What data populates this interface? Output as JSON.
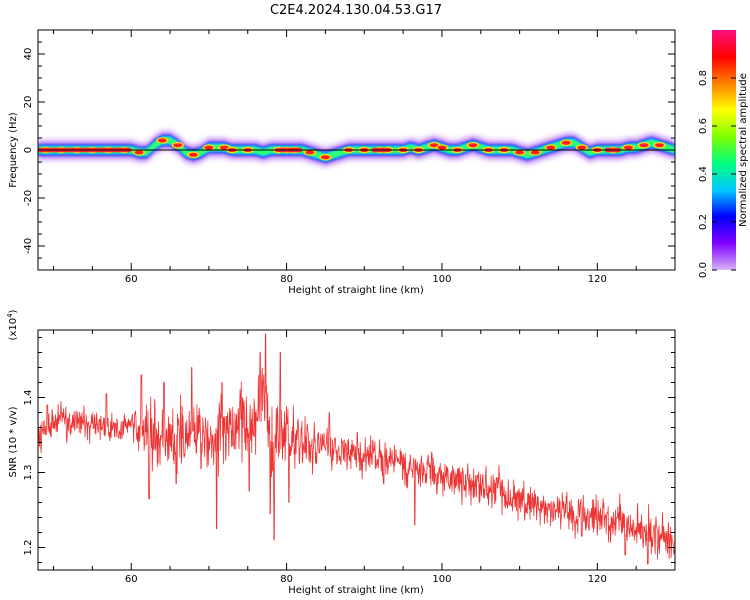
{
  "figure": {
    "title": "C2E4.2024.130.04.53.G17"
  },
  "chart_data": [
    {
      "type": "heatmap",
      "name": "spectrogram",
      "xlabel": "Height of straight line (km)",
      "ylabel": "Frequency (Hz)",
      "xlim": [
        48,
        130
      ],
      "ylim": [
        -50,
        50
      ],
      "x_ticks": [
        60,
        80,
        100,
        120
      ],
      "y_ticks": [
        -40,
        -20,
        0,
        20,
        40
      ],
      "colorbar": {
        "label": "Normalized spectral amplitude",
        "range": [
          0.0,
          1.0
        ],
        "ticks": [
          "0.0",
          "0.2",
          "0.4",
          "0.6",
          "0.8"
        ],
        "colormap": [
          "#d8b4f8",
          "#8000ff",
          "#0000ff",
          "#00c8ff",
          "#00ff80",
          "#80ff00",
          "#ffff00",
          "#ff8000",
          "#ff0000",
          "#ff1080"
        ]
      },
      "ridge": {
        "x": [
          48,
          52,
          56,
          60,
          61,
          62,
          63,
          64,
          65,
          66,
          67,
          68,
          69,
          70,
          71,
          72,
          73,
          74,
          75,
          76,
          77,
          78,
          79,
          80,
          81,
          82,
          83,
          84,
          85,
          86,
          87,
          88,
          89,
          90,
          91,
          92,
          93,
          94,
          95,
          96,
          97,
          98,
          99,
          100,
          101,
          102,
          103,
          104,
          105,
          106,
          107,
          108,
          109,
          110,
          111,
          112,
          113,
          114,
          115,
          116,
          117,
          118,
          119,
          120,
          121,
          122,
          123,
          124,
          125,
          126,
          127,
          128,
          129,
          130
        ],
        "y": [
          0,
          0,
          0,
          0,
          -1,
          -1,
          2,
          4,
          4,
          2,
          -1,
          -2,
          -1,
          1,
          1,
          1,
          0,
          0,
          0,
          0,
          -1,
          0,
          0,
          0,
          0,
          0,
          -1,
          -2,
          -3,
          -2,
          -1,
          0,
          0,
          0,
          0,
          0,
          0,
          0,
          0,
          1,
          0,
          1,
          2,
          1,
          0,
          0,
          1,
          2,
          1,
          0,
          0,
          0,
          0,
          -1,
          -2,
          -1,
          0,
          1,
          2,
          3,
          3,
          1,
          -1,
          0,
          0,
          0,
          0,
          1,
          1,
          2,
          3,
          2,
          1,
          0
        ]
      },
      "hot_spots_x": [
        49,
        51,
        53,
        55,
        57,
        59,
        61,
        64,
        66,
        68,
        70,
        72,
        73,
        75,
        79,
        80,
        81,
        83,
        85,
        88,
        90,
        92,
        93,
        95,
        97,
        99,
        100,
        102,
        104,
        106,
        108,
        110,
        112,
        114,
        116,
        118,
        120,
        122,
        124,
        126,
        128
      ]
    },
    {
      "type": "line",
      "name": "snr",
      "xlabel": "Height of straight line (km)",
      "ylabel": "SNR (10 * v/v)",
      "y_multiplier": "(x10",
      "y_multiplier_exp": "4",
      "xlim": [
        48,
        130
      ],
      "ylim": [
        11700,
        14900
      ],
      "x_ticks": [
        60,
        80,
        100,
        120
      ],
      "y_ticks": [
        12000,
        13000,
        14000
      ],
      "y_tick_labels": [
        "1.2",
        "1.3",
        "1.4"
      ],
      "color": "#ee3333",
      "n_points": 1640,
      "trend": {
        "x": [
          48,
          50,
          55,
          58,
          60,
          62,
          65,
          68,
          70,
          72,
          74,
          76,
          77,
          78,
          79,
          80,
          82,
          85,
          88,
          90,
          95,
          100,
          105,
          110,
          115,
          120,
          125,
          130
        ],
        "y": [
          13400,
          13700,
          13650,
          13600,
          13650,
          13500,
          13450,
          13500,
          13450,
          13500,
          13600,
          13650,
          14300,
          13300,
          13550,
          13500,
          13400,
          13350,
          13300,
          13250,
          13100,
          12950,
          12800,
          12650,
          12500,
          12400,
          12250,
          12050
        ]
      },
      "noise": {
        "x": [
          48,
          60,
          62,
          75,
          78,
          85,
          100,
          115,
          130
        ],
        "y": [
          90,
          100,
          200,
          220,
          250,
          120,
          120,
          130,
          140
        ]
      },
      "extremes": [
        {
          "x": 49.2,
          "y": 13900
        },
        {
          "x": 56.8,
          "y": 14050
        },
        {
          "x": 61.3,
          "y": 14300
        },
        {
          "x": 62.3,
          "y": 12650
        },
        {
          "x": 64.2,
          "y": 14200
        },
        {
          "x": 65.8,
          "y": 12850
        },
        {
          "x": 67.8,
          "y": 14400
        },
        {
          "x": 69.0,
          "y": 13050
        },
        {
          "x": 71.0,
          "y": 12250
        },
        {
          "x": 71.7,
          "y": 14200
        },
        {
          "x": 72.3,
          "y": 13750
        },
        {
          "x": 75.2,
          "y": 12750
        },
        {
          "x": 76.6,
          "y": 14600
        },
        {
          "x": 77.3,
          "y": 14850
        },
        {
          "x": 77.9,
          "y": 12450
        },
        {
          "x": 78.4,
          "y": 12100
        },
        {
          "x": 79.2,
          "y": 14600
        },
        {
          "x": 80.3,
          "y": 12600
        },
        {
          "x": 85.5,
          "y": 13800
        },
        {
          "x": 92.5,
          "y": 12850
        },
        {
          "x": 96.5,
          "y": 12300
        },
        {
          "x": 118.0,
          "y": 12150
        },
        {
          "x": 122.5,
          "y": 12400
        },
        {
          "x": 123.6,
          "y": 11900
        },
        {
          "x": 126.5,
          "y": 11780
        }
      ]
    }
  ]
}
